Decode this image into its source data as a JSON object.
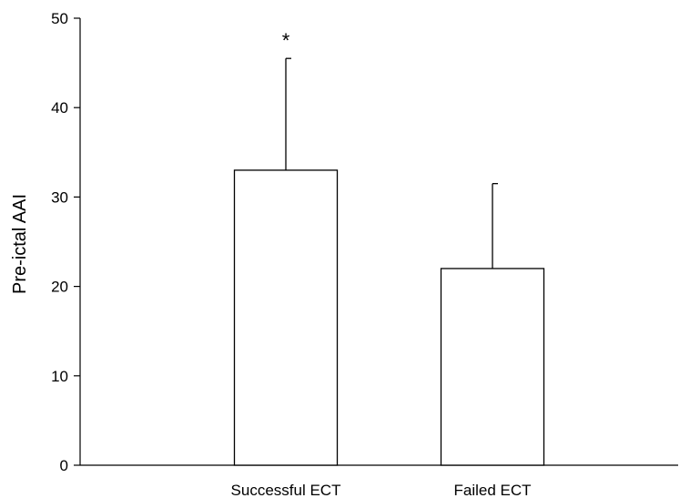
{
  "chart_data": {
    "type": "bar",
    "categories": [
      "Successful ECT",
      "Failed ECT"
    ],
    "values": [
      33,
      22
    ],
    "error_upper": [
      45.5,
      31.5
    ],
    "annotations": [
      "*",
      ""
    ],
    "ylabel": "Pre-ictal AAI",
    "xlabel": "",
    "ylim": [
      0,
      50
    ],
    "yticks": [
      0,
      10,
      20,
      30,
      40,
      50
    ],
    "grid": false,
    "legend": "none"
  }
}
